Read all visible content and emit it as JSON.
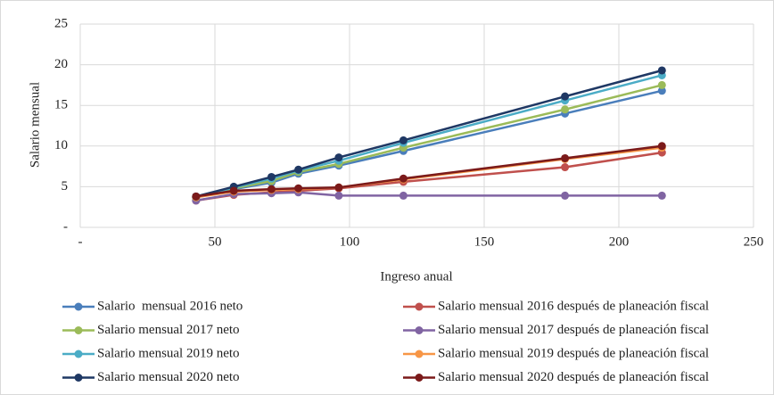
{
  "chart_data": {
    "type": "line",
    "x_label": "Ingreso anual",
    "y_label": "Salario mensual",
    "x": [
      43,
      57,
      71,
      81,
      96,
      120,
      180,
      216
    ],
    "xlim": [
      0,
      250
    ],
    "xticks": [
      {
        "value": 0,
        "label": "-"
      },
      50,
      100,
      150,
      200,
      250
    ],
    "ylim": [
      0,
      25
    ],
    "yticks": [
      {
        "value": 0,
        "label": "-"
      },
      5,
      10,
      15,
      20,
      25
    ],
    "grid": true,
    "legend": "bottom",
    "series": [
      {
        "name": "Salario  mensual 2016 neto",
        "color": "#4a7ebb",
        "values": [
          3.7,
          4.7,
          5.5,
          6.6,
          7.6,
          9.4,
          14.0,
          16.8
        ]
      },
      {
        "name": "Salario mensual 2016 después de planeación fiscal",
        "color": "#c0504d",
        "values": [
          3.3,
          4.0,
          4.3,
          4.5,
          4.8,
          5.6,
          7.4,
          9.2
        ]
      },
      {
        "name": "Salario mensual 2017 neto",
        "color": "#9bbb59",
        "values": [
          3.7,
          4.8,
          5.7,
          6.8,
          7.8,
          9.8,
          14.5,
          17.5
        ]
      },
      {
        "name": "Salario mensual 2017 después de planeación fiscal",
        "color": "#8064a2",
        "values": [
          3.3,
          4.1,
          4.2,
          4.3,
          3.9,
          3.9,
          3.9,
          3.9
        ]
      },
      {
        "name": "Salario mensual 2019 neto",
        "color": "#4bacc6",
        "values": [
          3.7,
          4.9,
          6.0,
          7.0,
          8.2,
          10.4,
          15.6,
          18.7
        ]
      },
      {
        "name": "Salario mensual 2019 después de planeación fiscal",
        "color": "#f79646",
        "values": [
          3.7,
          4.4,
          4.6,
          4.7,
          4.9,
          5.9,
          8.4,
          9.8
        ]
      },
      {
        "name": "Salario mensual 2020 neto",
        "color": "#1f3864",
        "values": [
          3.8,
          5.0,
          6.2,
          7.1,
          8.6,
          10.7,
          16.1,
          19.3
        ]
      },
      {
        "name": "Salario mensual 2020 después de planeación fiscal",
        "color": "#7b1a1a",
        "values": [
          3.8,
          4.5,
          4.7,
          4.8,
          4.9,
          6.0,
          8.5,
          10.0
        ]
      }
    ]
  }
}
